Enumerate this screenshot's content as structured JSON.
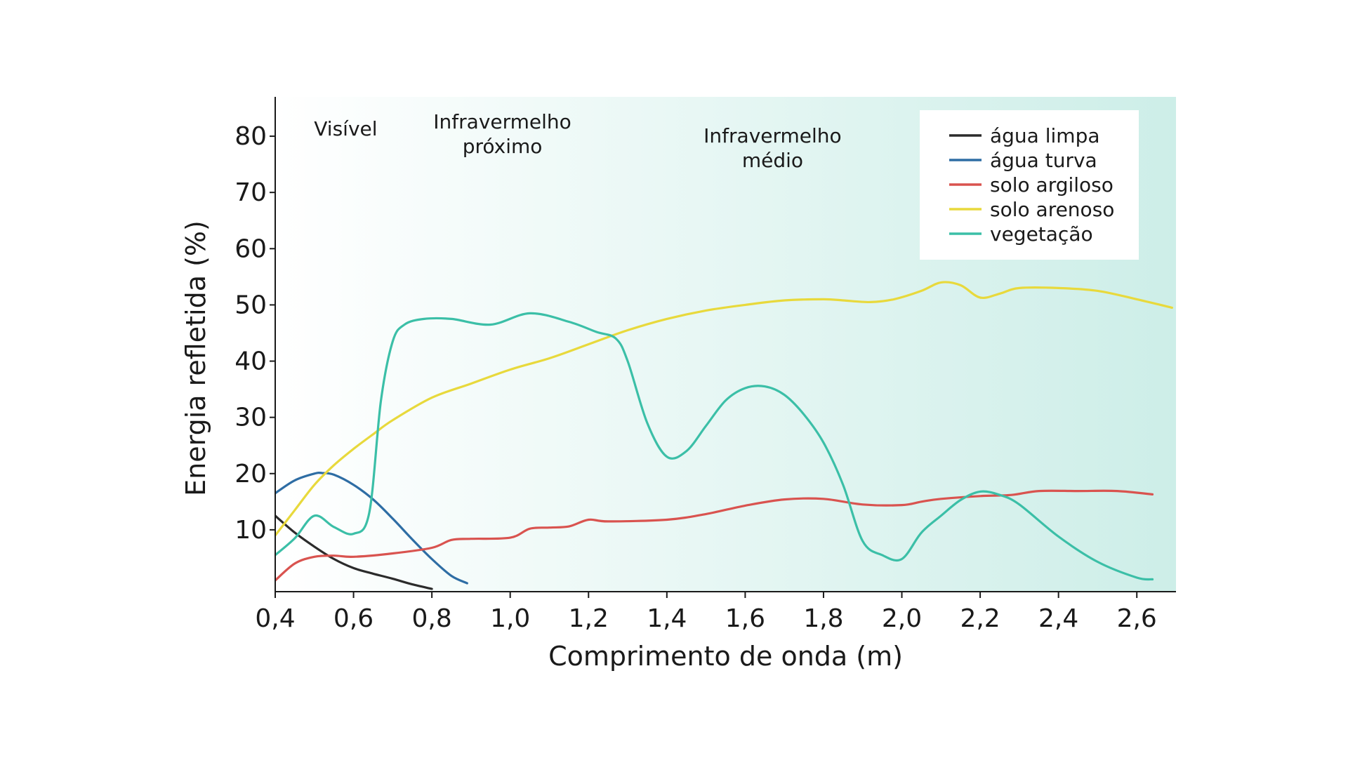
{
  "chart_data": {
    "type": "line",
    "xlabel": "Comprimento de onda (m)",
    "ylabel": "Energia refletida (%)",
    "xlim": [
      0.4,
      2.7
    ],
    "ylim": [
      -1,
      87
    ],
    "x_ticks": [
      0.4,
      0.6,
      0.8,
      1.0,
      1.2,
      1.4,
      1.6,
      1.8,
      2.0,
      2.2,
      2.4,
      2.6
    ],
    "x_tick_labels": [
      "0,4",
      "0,6",
      "0,8",
      "1,0",
      "1,2",
      "1,4",
      "1,6",
      "1,8",
      "2,0",
      "2,2",
      "2,4",
      "2,6"
    ],
    "y_ticks": [
      10,
      20,
      30,
      40,
      50,
      60,
      70,
      80
    ],
    "y_tick_labels": [
      "10",
      "20",
      "30",
      "40",
      "50",
      "60",
      "70",
      "80"
    ],
    "regions": [
      {
        "lines": [
          "Visível"
        ],
        "x": 0.58
      },
      {
        "lines": [
          "Infravermelho",
          "próximo"
        ],
        "x": 0.98
      },
      {
        "lines": [
          "Infravermelho",
          "médio"
        ],
        "x": 1.67
      }
    ],
    "background_gradient": {
      "from": "#ffffff",
      "to": "#cdeee8"
    },
    "legend_position": "top-right",
    "series": [
      {
        "name": "água limpa",
        "color": "#2b2b2b",
        "x": [
          0.4,
          0.45,
          0.5,
          0.55,
          0.6,
          0.65,
          0.7,
          0.75,
          0.8
        ],
        "y": [
          12.5,
          9.5,
          7,
          4.8,
          3.2,
          2.2,
          1.3,
          0.3,
          -0.5
        ]
      },
      {
        "name": "água turva",
        "color": "#2e6da4",
        "x": [
          0.4,
          0.45,
          0.5,
          0.52,
          0.55,
          0.6,
          0.65,
          0.7,
          0.75,
          0.8,
          0.85,
          0.89
        ],
        "y": [
          16.5,
          18.8,
          20,
          20.1,
          19.8,
          18,
          15.4,
          12,
          8.3,
          4.8,
          1.8,
          0.5
        ]
      },
      {
        "name": "solo argiloso",
        "color": "#d9534f",
        "x": [
          0.4,
          0.45,
          0.5,
          0.55,
          0.6,
          0.7,
          0.8,
          0.85,
          0.9,
          1.0,
          1.05,
          1.1,
          1.15,
          1.2,
          1.25,
          1.4,
          1.5,
          1.6,
          1.7,
          1.8,
          1.9,
          2.0,
          2.05,
          2.1,
          2.2,
          2.28,
          2.35,
          2.45,
          2.55,
          2.64
        ],
        "y": [
          1,
          4,
          5.2,
          5.4,
          5.2,
          5.8,
          6.8,
          8.2,
          8.4,
          8.6,
          10.2,
          10.4,
          10.6,
          11.8,
          11.5,
          11.8,
          12.8,
          14.3,
          15.4,
          15.5,
          14.5,
          14.4,
          15,
          15.5,
          16,
          16.2,
          16.9,
          16.9,
          16.9,
          16.3
        ]
      },
      {
        "name": "solo arenoso",
        "color": "#e8d93c",
        "x": [
          0.4,
          0.45,
          0.5,
          0.55,
          0.6,
          0.65,
          0.7,
          0.8,
          0.9,
          1.0,
          1.1,
          1.2,
          1.3,
          1.4,
          1.5,
          1.6,
          1.7,
          1.8,
          1.85,
          1.92,
          1.98,
          2.05,
          2.1,
          2.15,
          2.2,
          2.25,
          2.3,
          2.4,
          2.5,
          2.6,
          2.69
        ],
        "y": [
          9,
          13.5,
          18,
          21.5,
          24.4,
          27,
          29.5,
          33.5,
          36,
          38.5,
          40.5,
          43,
          45.5,
          47.5,
          49,
          50,
          50.8,
          51,
          50.8,
          50.5,
          51,
          52.5,
          54,
          53.5,
          51.3,
          52,
          53,
          53,
          52.5,
          51,
          49.5
        ]
      },
      {
        "name": "vegetação",
        "color": "#3bbfa7",
        "x": [
          0.4,
          0.45,
          0.5,
          0.55,
          0.6,
          0.64,
          0.67,
          0.7,
          0.73,
          0.78,
          0.85,
          0.95,
          1.05,
          1.15,
          1.22,
          1.27,
          1.3,
          1.35,
          1.4,
          1.45,
          1.5,
          1.55,
          1.6,
          1.65,
          1.7,
          1.75,
          1.8,
          1.85,
          1.9,
          1.95,
          2.0,
          2.05,
          2.1,
          2.15,
          2.2,
          2.25,
          2.3,
          2.4,
          2.5,
          2.6,
          2.64
        ],
        "y": [
          5.5,
          8.5,
          12.5,
          10.5,
          9.3,
          13,
          33,
          43.5,
          46.5,
          47.5,
          47.5,
          46.5,
          48.5,
          47,
          45.2,
          44,
          40,
          29,
          23,
          24,
          28.5,
          33,
          35.2,
          35.5,
          34,
          30.5,
          25.5,
          18,
          8,
          5.5,
          4.8,
          9.5,
          12.5,
          15.3,
          16.8,
          16.2,
          14.5,
          8.8,
          4.3,
          1.5,
          1.2
        ]
      }
    ]
  }
}
